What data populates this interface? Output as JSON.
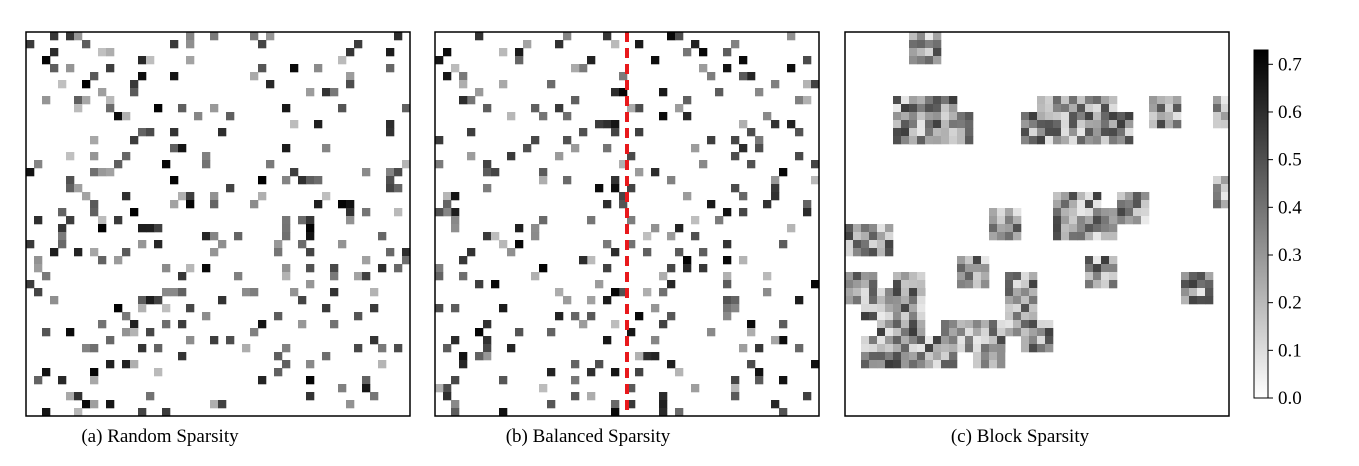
{
  "chart_data": [
    {
      "type": "heatmap",
      "title": "(a) Random Sparsity",
      "grid_size": [
        48,
        48
      ],
      "pattern": "random",
      "density": 0.12,
      "seed": 11,
      "vmin": 0.0,
      "vmax": 0.73,
      "colormap": "Greys"
    },
    {
      "type": "heatmap",
      "title": "(b) Balanced Sparsity",
      "grid_size": [
        48,
        48
      ],
      "pattern": "balanced",
      "density": 0.12,
      "seed": 29,
      "vmin": 0.0,
      "vmax": 0.73,
      "colormap": "Greys",
      "divider": {
        "style": "dashed",
        "color": "#e8191c"
      }
    },
    {
      "type": "heatmap",
      "title": "(c) Block Sparsity",
      "grid_size": [
        48,
        48
      ],
      "pattern": "block",
      "block_size": [
        8,
        4
      ],
      "blocks": [
        [
          0,
          4
        ],
        [
          4,
          3
        ],
        [
          4,
          5
        ],
        [
          4,
          12
        ],
        [
          4,
          13
        ],
        [
          4,
          14
        ],
        [
          4,
          15
        ],
        [
          4,
          19
        ],
        [
          4,
          23
        ],
        [
          5,
          3
        ],
        [
          5,
          4
        ],
        [
          5,
          6
        ],
        [
          5,
          11
        ],
        [
          5,
          13
        ],
        [
          5,
          14
        ],
        [
          5,
          15
        ],
        [
          5,
          16
        ],
        [
          9,
          23
        ],
        [
          10,
          13
        ],
        [
          10,
          14
        ],
        [
          10,
          17
        ],
        [
          11,
          9
        ],
        [
          11,
          13
        ],
        [
          11,
          15
        ],
        [
          12,
          0
        ],
        [
          12,
          1
        ],
        [
          14,
          7
        ],
        [
          14,
          15
        ],
        [
          15,
          0
        ],
        [
          15,
          3
        ],
        [
          15,
          10
        ],
        [
          15,
          21
        ],
        [
          16,
          1
        ],
        [
          16,
          3
        ],
        [
          17,
          10
        ],
        [
          18,
          2
        ],
        [
          18,
          3
        ],
        [
          18,
          6
        ],
        [
          18,
          8
        ],
        [
          18,
          11
        ],
        [
          19,
          1
        ],
        [
          19,
          3
        ],
        [
          19,
          5
        ],
        [
          19,
          8
        ]
      ],
      "seed": 47,
      "vmin": 0.0,
      "vmax": 0.73,
      "colormap": "Greys"
    }
  ],
  "colorbar": {
    "min": 0.0,
    "max": 0.73,
    "ticks": [
      "0.0",
      "0.1",
      "0.2",
      "0.3",
      "0.4",
      "0.5",
      "0.6",
      "0.7"
    ]
  }
}
